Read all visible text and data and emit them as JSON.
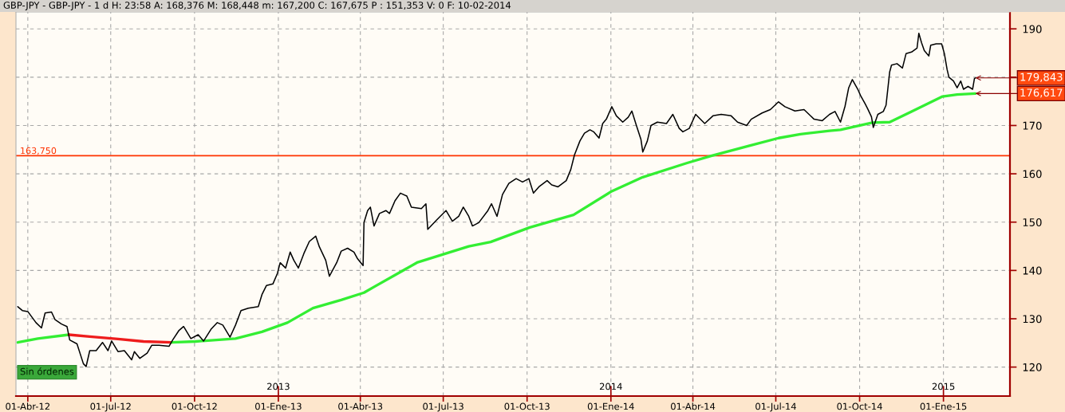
{
  "chart_data": {
    "type": "line",
    "title": "GBP-JPY - GBP-JPY - 1 d H: 23:58 A: 168,376 M: 168,448 m: 167,200 C: 167,675 P : 151,353 V: 0 F: 10-02-2014",
    "series": [
      {
        "color": "#000000",
        "x": [
          "2012-03-21",
          "2012-03-26",
          "2012-04-01",
          "2012-04-10",
          "2012-04-16",
          "2012-04-20",
          "2012-04-27",
          "2012-05-01",
          "2012-05-08",
          "2012-05-14",
          "2012-05-17",
          "2012-05-25",
          "2012-06-01",
          "2012-06-04",
          "2012-06-08",
          "2012-06-15",
          "2012-06-22",
          "2012-06-28",
          "2012-07-02",
          "2012-07-09",
          "2012-07-16",
          "2012-07-24",
          "2012-07-27",
          "2012-08-02",
          "2012-08-10",
          "2012-08-15",
          "2012-08-23",
          "2012-09-03",
          "2012-09-07",
          "2012-09-14",
          "2012-09-19",
          "2012-09-27",
          "2012-10-05",
          "2012-10-11",
          "2012-10-19",
          "2012-10-26",
          "2012-11-01",
          "2012-11-09",
          "2012-11-15",
          "2012-11-21",
          "2012-11-29",
          "2012-12-10",
          "2012-12-14",
          "2012-12-19",
          "2012-12-26",
          "2012-12-31",
          "2013-01-03",
          "2013-01-09",
          "2013-01-14",
          "2013-01-18",
          "2013-01-23",
          "2013-01-29",
          "2013-02-04",
          "2013-02-11",
          "2013-02-15",
          "2013-02-22",
          "2013-02-26",
          "2013-03-06",
          "2013-03-11",
          "2013-03-18",
          "2013-03-25",
          "2013-03-29",
          "2013-04-04",
          "2013-04-05",
          "2013-04-09",
          "2013-04-12",
          "2013-04-16",
          "2013-04-22",
          "2013-04-29",
          "2013-05-03",
          "2013-05-09",
          "2013-05-15",
          "2013-05-22",
          "2013-05-27",
          "2013-06-07",
          "2013-06-12",
          "2013-06-14",
          "2013-06-24",
          "2013-07-04",
          "2013-07-11",
          "2013-07-18",
          "2013-07-23",
          "2013-07-29",
          "2013-08-02",
          "2013-08-09",
          "2013-08-19",
          "2013-08-23",
          "2013-08-29",
          "2013-09-04",
          "2013-09-11",
          "2013-09-19",
          "2013-09-26",
          "2013-10-03",
          "2013-10-08",
          "2013-10-14",
          "2013-10-23",
          "2013-10-28",
          "2013-11-04",
          "2013-11-13",
          "2013-11-18",
          "2013-11-22",
          "2013-11-28",
          "2013-12-03",
          "2013-12-09",
          "2013-12-13",
          "2013-12-19",
          "2013-12-23",
          "2013-12-27",
          "2014-01-02",
          "2014-01-07",
          "2014-01-14",
          "2014-01-20",
          "2014-01-24",
          "2014-01-29",
          "2014-02-03",
          "2014-02-05",
          "2014-02-10",
          "2014-02-14",
          "2014-02-21",
          "2014-03-03",
          "2014-03-10",
          "2014-03-17",
          "2014-03-21",
          "2014-03-28",
          "2014-04-04",
          "2014-04-14",
          "2014-04-23",
          "2014-05-02",
          "2014-05-13",
          "2014-05-20",
          "2014-05-30",
          "2014-06-04",
          "2014-06-16",
          "2014-06-25",
          "2014-07-04",
          "2014-07-11",
          "2014-07-22",
          "2014-08-01",
          "2014-08-12",
          "2014-08-21",
          "2014-08-29",
          "2014-09-04",
          "2014-09-10",
          "2014-09-15",
          "2014-09-19",
          "2014-09-23",
          "2014-09-29",
          "2014-10-02",
          "2014-10-07",
          "2014-10-10",
          "2014-10-14",
          "2014-10-16",
          "2014-10-21",
          "2014-10-27",
          "2014-10-30",
          "2014-11-03",
          "2014-11-05",
          "2014-11-11",
          "2014-11-17",
          "2014-11-21",
          "2014-11-27",
          "2014-12-03",
          "2014-12-05",
          "2014-12-08",
          "2014-12-11",
          "2014-12-16",
          "2014-12-18",
          "2014-12-24",
          "2014-12-30",
          "2015-01-02",
          "2015-01-05",
          "2015-01-07",
          "2015-01-12",
          "2015-01-16",
          "2015-01-20",
          "2015-01-23",
          "2015-01-28",
          "2015-02-02",
          "2015-02-04",
          "2015-02-05"
        ],
        "values": [
          132.5,
          131.7,
          131.5,
          129.2,
          128.1,
          131.2,
          131.4,
          129.8,
          128.9,
          128.4,
          125.6,
          124.8,
          120.7,
          120.1,
          123.4,
          123.4,
          125.1,
          123.4,
          125.4,
          123.2,
          123.4,
          121.5,
          123.2,
          121.8,
          122.9,
          124.5,
          124.5,
          124.3,
          125.6,
          127.6,
          128.4,
          125.9,
          126.7,
          125.4,
          127.8,
          129.2,
          128.7,
          126.2,
          128.7,
          131.7,
          132.2,
          132.5,
          135.0,
          136.9,
          137.2,
          139.4,
          141.6,
          140.5,
          143.8,
          142.1,
          140.5,
          143.5,
          146.0,
          147.1,
          144.9,
          142.1,
          138.8,
          141.6,
          144.0,
          144.6,
          143.8,
          142.4,
          141.0,
          149.9,
          152.4,
          153.1,
          149.2,
          151.8,
          152.4,
          151.8,
          154.4,
          156.0,
          155.4,
          153.1,
          152.8,
          153.8,
          148.5,
          150.5,
          152.4,
          150.2,
          151.2,
          153.1,
          151.2,
          149.2,
          149.9,
          152.4,
          153.8,
          151.2,
          155.7,
          158.0,
          159.0,
          158.3,
          159.0,
          156.0,
          157.3,
          158.6,
          157.7,
          157.3,
          158.6,
          160.9,
          163.9,
          166.8,
          168.4,
          169.1,
          168.7,
          167.4,
          170.4,
          171.3,
          173.9,
          172.0,
          170.7,
          171.7,
          173.0,
          170.0,
          167.1,
          164.5,
          166.8,
          170.0,
          170.7,
          170.4,
          172.3,
          169.4,
          168.7,
          169.4,
          172.3,
          170.4,
          172.0,
          172.3,
          172.0,
          170.7,
          170.0,
          171.3,
          172.6,
          173.3,
          174.9,
          173.9,
          173.0,
          173.3,
          171.3,
          171.0,
          172.3,
          172.9,
          170.7,
          174.0,
          177.8,
          179.5,
          177.5,
          176.2,
          174.5,
          173.4,
          171.8,
          169.6,
          172.3,
          172.9,
          174.2,
          181.1,
          182.5,
          182.8,
          181.9,
          184.9,
          185.2,
          186.0,
          189.1,
          187.1,
          185.5,
          184.4,
          186.6,
          186.9,
          186.9,
          184.9,
          181.6,
          180.0,
          179.2,
          177.8,
          179.2,
          177.5,
          178.1,
          177.5,
          179.7,
          179.843
        ]
      },
      {
        "color": "#33ee33",
        "x": [
          "2012-03-21",
          "2012-04-12",
          "2012-05-16"
        ],
        "values": [
          125.1,
          125.9,
          126.7
        ]
      },
      {
        "color": "#ee1c1c",
        "x": [
          "2012-05-16",
          "2012-06-08",
          "2012-07-09",
          "2012-08-06",
          "2012-09-06"
        ],
        "values": [
          126.7,
          126.3,
          125.8,
          125.3,
          125.1
        ]
      },
      {
        "color": "#33ee33",
        "x": [
          "2012-09-06",
          "2012-10-02",
          "2012-11-15",
          "2012-12-14",
          "2013-01-11",
          "2013-02-08",
          "2013-03-11",
          "2013-04-05",
          "2013-04-17",
          "2013-06-03",
          "2013-07-29",
          "2013-08-22",
          "2013-10-04",
          "2013-11-21",
          "2014-01-02",
          "2014-02-05",
          "2014-03-25",
          "2014-04-21",
          "2014-06-02",
          "2014-07-04",
          "2014-07-28",
          "2014-08-29",
          "2014-09-10",
          "2014-10-15",
          "2014-11-03",
          "2014-11-27",
          "2014-12-31",
          "2015-01-16",
          "2015-02-05"
        ],
        "values": [
          125.1,
          125.3,
          125.9,
          127.3,
          129.2,
          132.2,
          133.9,
          135.4,
          136.7,
          141.7,
          145.0,
          145.9,
          148.9,
          151.5,
          156.4,
          159.3,
          162.2,
          163.7,
          165.8,
          167.4,
          168.2,
          168.9,
          169.1,
          170.6,
          170.7,
          172.9,
          176.0,
          176.4,
          176.617
        ]
      }
    ],
    "xlim": [
      "2012-03-19",
      "2015-03-15"
    ],
    "xticks": [
      {
        "value": "2012-04-01",
        "label": "01-Abr-12"
      },
      {
        "value": "2012-07-01",
        "label": "01-Jul-12"
      },
      {
        "value": "2012-10-01",
        "label": "01-Oct-12"
      },
      {
        "value": "2013-01-01",
        "label": "01-Ene-13"
      },
      {
        "value": "2013-04-01",
        "label": "01-Abr-13"
      },
      {
        "value": "2013-07-01",
        "label": "01-Jul-13"
      },
      {
        "value": "2013-10-01",
        "label": "01-Oct-13"
      },
      {
        "value": "2014-01-01",
        "label": "01-Ene-14"
      },
      {
        "value": "2014-04-01",
        "label": "01-Abr-14"
      },
      {
        "value": "2014-07-01",
        "label": "01-Jul-14"
      },
      {
        "value": "2014-10-01",
        "label": "01-Oct-14"
      },
      {
        "value": "2015-01-01",
        "label": "01-Ene-15"
      }
    ],
    "x2lim": [
      "2012-03-19",
      "2015-03-15"
    ],
    "x2ticks": [
      {
        "value": "2013-01-01",
        "label": "2013"
      },
      {
        "value": "2014-01-01",
        "label": "2014"
      },
      {
        "value": "2015-01-01",
        "label": "2015"
      }
    ],
    "ylim": [
      114.0,
      193.5
    ],
    "yticks": [
      120,
      130,
      140,
      150,
      160,
      170,
      {
        "value": 180,
        "label": null
      },
      190
    ],
    "grid": true,
    "ref_lines": [
      {
        "axis": "y",
        "value": 163.75,
        "label": "163,750",
        "color": "#ff3300"
      }
    ],
    "annotations": [
      "Sin órdenes",
      {
        "text": "179,843",
        "x": "2015-02-05",
        "y": 179.843
      },
      {
        "text": "176,617",
        "x": "2015-02-05",
        "y": 176.617
      }
    ]
  }
}
